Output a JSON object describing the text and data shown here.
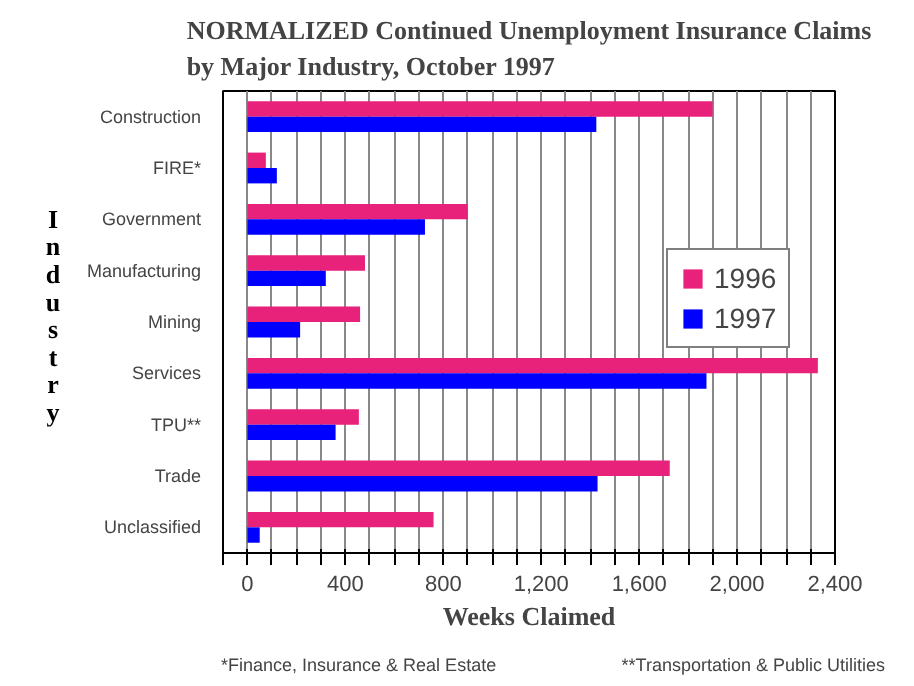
{
  "chart_data": {
    "type": "bar",
    "orientation": "horizontal",
    "title": "NORMALIZED Continued Unemployment Insurance Claims\nby Major Industry, October 1997",
    "xlabel": "Weeks Claimed",
    "ylabel": "Industry",
    "categories": [
      "Construction",
      "FIRE*",
      "Government",
      "Manufacturing",
      "Mining",
      "Services",
      "TPU**",
      "Trade",
      "Unclassified"
    ],
    "series": [
      {
        "name": "1996",
        "color": "#e8217a",
        "values": [
          1900,
          75,
          900,
          480,
          460,
          2330,
          455,
          1725,
          760
        ]
      },
      {
        "name": "1997",
        "color": "#0000ff",
        "values": [
          1425,
          120,
          725,
          320,
          215,
          1875,
          360,
          1430,
          50
        ]
      }
    ],
    "xlim": [
      -100,
      2400
    ],
    "xticks": [
      {
        "value": -100,
        "label": null
      },
      0,
      {
        "value": 100,
        "label": null
      },
      {
        "value": 200,
        "label": null
      },
      {
        "value": 300,
        "label": null
      },
      400,
      {
        "value": 500,
        "label": null
      },
      {
        "value": 600,
        "label": null
      },
      {
        "value": 700,
        "label": null
      },
      800,
      {
        "value": 900,
        "label": null
      },
      {
        "value": 1000,
        "label": null
      },
      {
        "value": 1100,
        "label": null
      },
      {
        "value": 1200,
        "label": "1,200"
      },
      {
        "value": 1300,
        "label": null
      },
      {
        "value": 1400,
        "label": null
      },
      {
        "value": 1500,
        "label": null
      },
      {
        "value": 1600,
        "label": "1,600"
      },
      {
        "value": 1700,
        "label": null
      },
      {
        "value": 1800,
        "label": null
      },
      {
        "value": 1900,
        "label": null
      },
      {
        "value": 2000,
        "label": "2,000"
      },
      {
        "value": 2100,
        "label": null
      },
      {
        "value": 2200,
        "label": null
      },
      {
        "value": 2300,
        "label": null
      },
      {
        "value": 2400,
        "label": "2,400"
      }
    ],
    "grid": "x",
    "legend": "right",
    "annotations": [
      "*Finance, Insurance & Real Estate",
      "**Transportation & Public Utilities"
    ]
  }
}
